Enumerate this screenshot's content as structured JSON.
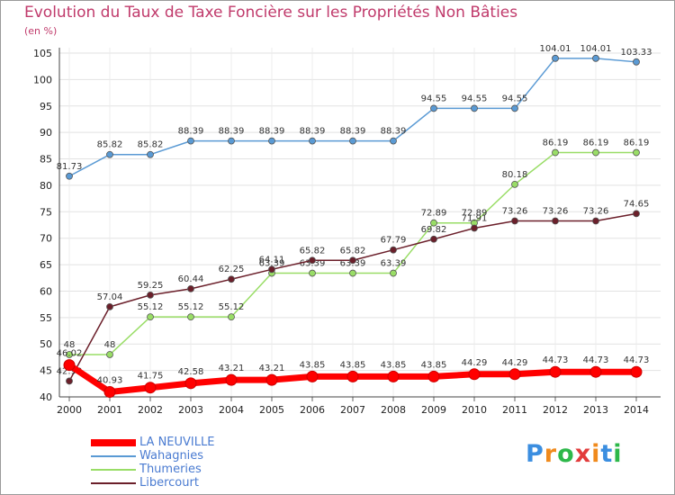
{
  "title": "Evolution du Taux de Taxe Foncière sur les Propriétés Non Bâties",
  "unit_label": "(en %)",
  "logo_text": "Proxiti",
  "chart_data": {
    "type": "line",
    "x": [
      "2000",
      "2001",
      "2002",
      "2003",
      "2004",
      "2005",
      "2006",
      "2007",
      "2008",
      "2009",
      "2010",
      "2011",
      "2012",
      "2013",
      "2014"
    ],
    "ylim": [
      40,
      105
    ],
    "yticks": [
      40,
      45,
      50,
      55,
      60,
      65,
      70,
      75,
      80,
      85,
      90,
      95,
      100,
      105
    ],
    "grid": true,
    "legend_position": "bottom-left",
    "series": [
      {
        "name": "LA NEUVILLE",
        "color": "#ff0000",
        "values": [
          46.02,
          40.93,
          41.75,
          42.58,
          43.21,
          43.21,
          43.85,
          43.85,
          43.85,
          43.85,
          44.29,
          44.29,
          44.73,
          44.73,
          44.73
        ],
        "labels": [
          "46.02",
          "40.93",
          "41.75",
          "42.58",
          "43.21",
          "43.21",
          "43.85",
          "43.85",
          "43.85",
          "43.85",
          "44.29",
          "44.29",
          "44.73",
          "44.73",
          "44.73"
        ]
      },
      {
        "name": "Wahagnies",
        "color": "#5a9ad4",
        "values": [
          81.73,
          85.82,
          85.82,
          88.39,
          88.39,
          88.39,
          88.39,
          88.39,
          88.39,
          94.55,
          94.55,
          94.55,
          104.01,
          104.01,
          103.33
        ],
        "labels": [
          "81.73",
          "85.82",
          "85.82",
          "88.39",
          "88.39",
          "88.39",
          "88.39",
          "88.39",
          "88.39",
          "94.55",
          "94.55",
          "94.55",
          "104.01",
          "104.01",
          "103.33"
        ]
      },
      {
        "name": "Thumeries",
        "color": "#99dd66",
        "values": [
          48,
          48,
          55.12,
          55.12,
          55.12,
          63.39,
          63.39,
          63.39,
          63.39,
          72.89,
          72.89,
          80.18,
          86.19,
          86.19,
          86.19
        ],
        "labels": [
          "48",
          "48",
          "55.12",
          "55.12",
          "55.12",
          "63.39",
          "63.39",
          "63.39",
          "63.39",
          "72.89",
          "72.89",
          "80.18",
          "86.19",
          "86.19",
          "86.19"
        ]
      },
      {
        "name": "Libercourt",
        "color": "#6b1f2a",
        "values": [
          42.99,
          57.04,
          59.25,
          60.44,
          62.25,
          64.11,
          65.82,
          65.82,
          67.79,
          69.82,
          71.91,
          73.26,
          73.26,
          73.26,
          74.65
        ],
        "labels": [
          "42.99",
          "57.04",
          "59.25",
          "60.44",
          "62.25",
          "64.11",
          "65.82",
          "65.82",
          "67.79",
          "69.82",
          "71.91",
          "73.26",
          "73.26",
          "73.26",
          "74.65"
        ]
      }
    ]
  }
}
